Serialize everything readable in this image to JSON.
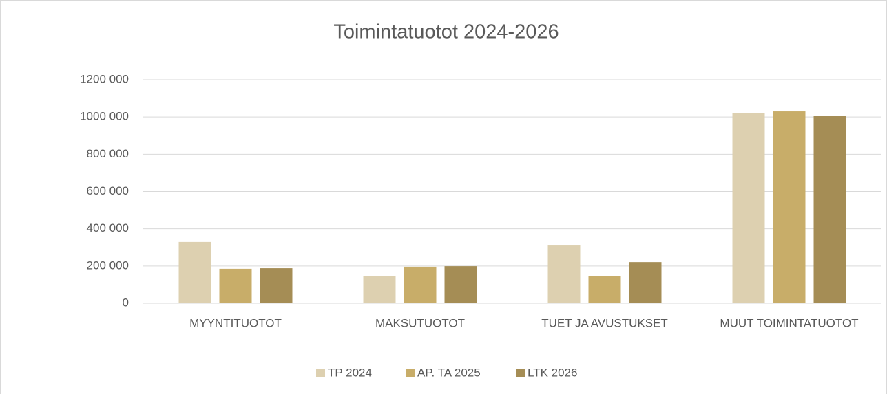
{
  "chart_data": {
    "type": "bar",
    "title": "Toimintatuotot 2024-2026",
    "categories": [
      "MYYNTITUOTOT",
      "MAKSUTUOTOT",
      "TUET JA AVUSTUKSET",
      "MUUT TOIMINTATUOTOT"
    ],
    "series": [
      {
        "name": "TP 2024",
        "color": "#ddd0b0",
        "values": [
          329000,
          147000,
          310000,
          1022000
        ]
      },
      {
        "name": "AP. TA 2025",
        "color": "#c8ad69",
        "values": [
          185000,
          196000,
          144000,
          1030000
        ]
      },
      {
        "name": "LTK 2026",
        "color": "#a58d55",
        "values": [
          188000,
          199000,
          221000,
          1008000
        ]
      }
    ],
    "ylim": [
      0,
      1200000
    ],
    "yticks": [
      0,
      {
        "value": 200000,
        "label": "200 000"
      },
      {
        "value": 400000,
        "label": "400 000"
      },
      {
        "value": 600000,
        "label": "600 000"
      },
      {
        "value": 800000,
        "label": "800 000"
      },
      {
        "value": 1000000,
        "label": "1000 000"
      },
      {
        "value": 1200000,
        "label": "1200 000"
      }
    ],
    "grid": true,
    "legend": "bottom"
  }
}
